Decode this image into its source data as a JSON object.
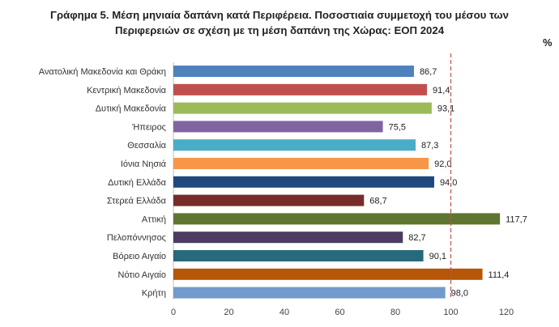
{
  "title_lines": [
    "Γράφημα 5. Μέση μηνιαία δαπάνη κατά Περιφέρεια. Ποσοστιαία συμμετοχή του μέσου των",
    "Περιφερειών σε σχέση με τη μέση δαπάνη της Χώρας: ΕΟΠ 2024"
  ],
  "unit_label": "%",
  "chart_data": {
    "type": "bar",
    "orientation": "horizontal",
    "title": "Γράφημα 5. Μέση μηνιαία δαπάνη κατά Περιφέρεια. Ποσοστιαία συμμετοχή του μέσου των Περιφερειών σε σχέση με τη μέση δαπάνη της Χώρας: ΕΟΠ 2024",
    "categories": [
      "Ανατολική Μακεδονία και Θράκη",
      "Κεντρική Μακεδονία",
      "Δυτική Μακεδονία",
      "Ήπειρος",
      "Θεσσαλία",
      "Ιόνια Νησιά",
      "Δυτική Ελλάδα",
      "Στερεά Ελλάδα",
      "Αττική",
      "Πελοπόννησος",
      "Βόρειο Αιγαίο",
      "Νότιο Αιγαίο",
      "Κρήτη"
    ],
    "values": [
      86.7,
      91.4,
      93.1,
      75.5,
      87.3,
      92.0,
      94.0,
      68.7,
      117.7,
      82.7,
      90.1,
      111.4,
      98.0
    ],
    "value_labels": [
      "86,7",
      "91,4",
      "93,1",
      "75,5",
      "87,3",
      "92,0",
      "94,0",
      "68,7",
      "117,7",
      "82,7",
      "90,1",
      "111,4",
      "98,0"
    ],
    "colors": [
      "#4f81bd",
      "#c0504d",
      "#9bbb59",
      "#8064a2",
      "#4bacc6",
      "#f79646",
      "#1f497d",
      "#772c2a",
      "#5f7530",
      "#4d3b62",
      "#276a7c",
      "#b65708",
      "#729aca"
    ],
    "xlim": [
      0,
      120
    ],
    "xticks": [
      0,
      20,
      40,
      60,
      80,
      100,
      120
    ],
    "xtick_labels": [
      "0",
      "20",
      "40",
      "60",
      "80",
      "100",
      "120"
    ],
    "reference_line": {
      "value": 100,
      "color": "#c0504d",
      "style": "dashed"
    },
    "grid": false,
    "legend": "none"
  }
}
